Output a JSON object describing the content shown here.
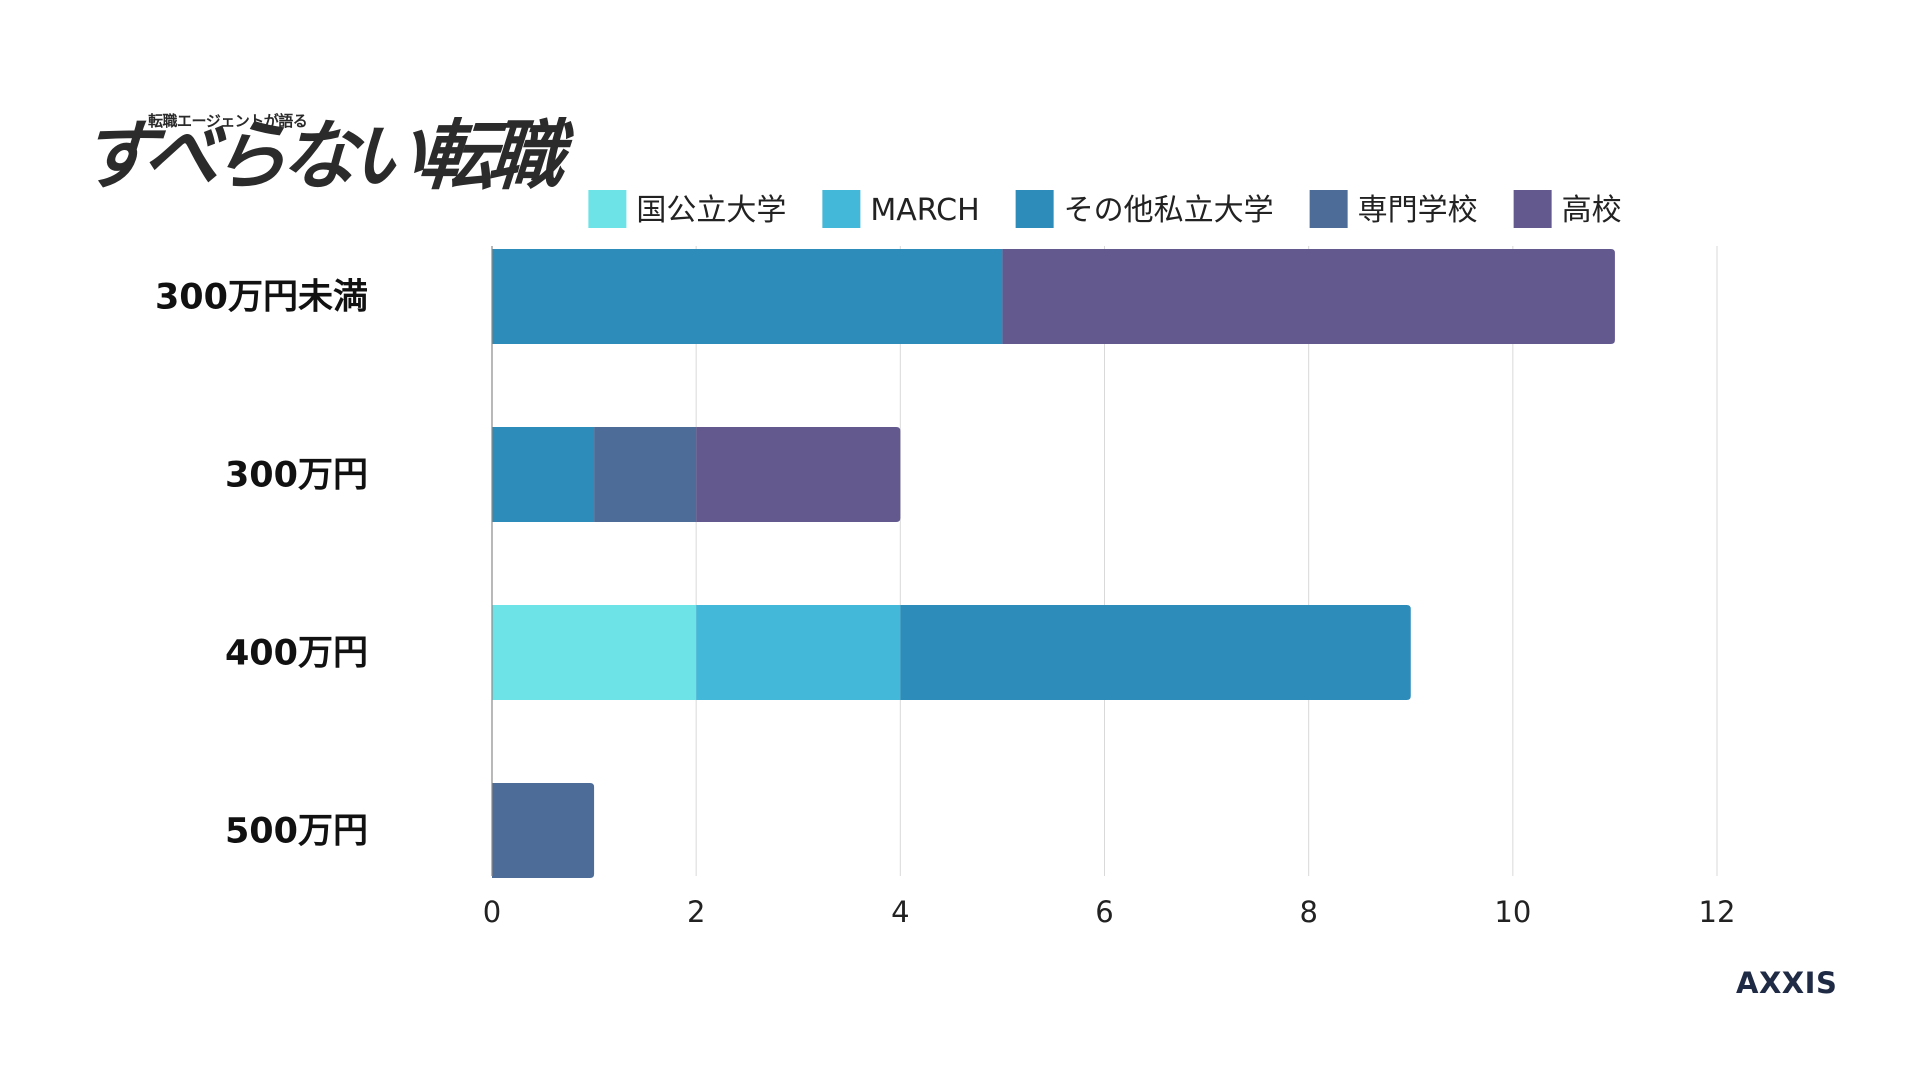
{
  "brand": {
    "tagline": "転職エージェントが語る",
    "title": "すべらない転職",
    "footer_logo": "AXXIS"
  },
  "colors": {
    "grid": "#d9d9d9",
    "axis": "#8a8a8a",
    "category_text": "#111111",
    "tick_text": "#222222"
  },
  "chart_data": {
    "type": "bar",
    "orientation": "horizontal",
    "stacked": true,
    "categories": [
      "300万円未満",
      "300万円",
      "400万円",
      "500万円"
    ],
    "series": [
      {
        "name": "国公立大学",
        "color": "#6de3e8",
        "values": [
          0,
          0,
          2,
          0
        ]
      },
      {
        "name": "MARCH",
        "color": "#43b8d8",
        "values": [
          0,
          0,
          2,
          0
        ]
      },
      {
        "name": "その他私立大学",
        "color": "#2e8cba",
        "values": [
          5,
          1,
          5,
          0
        ]
      },
      {
        "name": "専門学校",
        "color": "#4d6d98",
        "values": [
          0,
          1,
          0,
          1
        ]
      },
      {
        "name": "高校",
        "color": "#63598e",
        "values": [
          6,
          2,
          0,
          0
        ]
      }
    ],
    "xlim": [
      0,
      12
    ],
    "xticks": [
      0,
      2,
      4,
      6,
      8,
      10,
      12
    ],
    "grid": true,
    "legend_position": "top"
  }
}
